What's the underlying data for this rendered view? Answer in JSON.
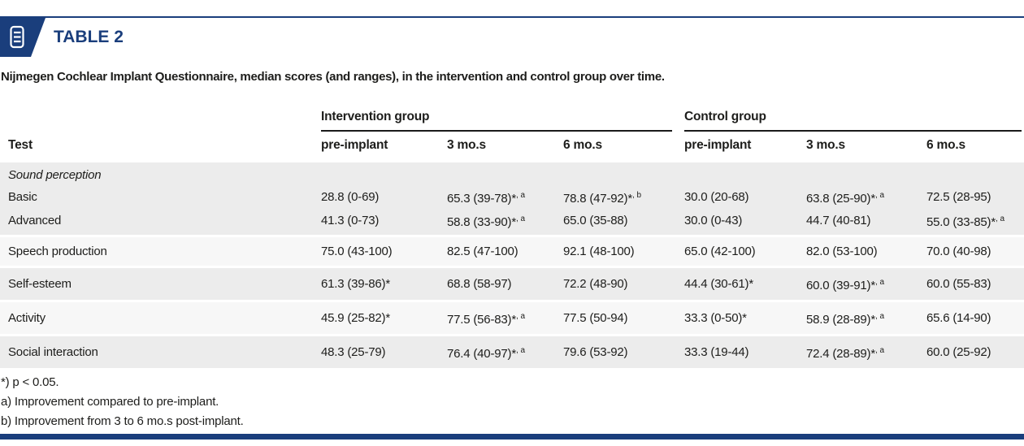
{
  "colors": {
    "navy": "#1a3e7c",
    "band_dark": "#ececec",
    "band_light": "#f7f7f7",
    "text": "#1d1d1b"
  },
  "header": {
    "title": "TABLE 2",
    "icon": "table-list-icon"
  },
  "caption": "Nijmegen Cochlear Implant Questionnaire, median scores (and ranges), in the intervention and control group over time.",
  "table": {
    "test_col_header": "Test",
    "groups": [
      {
        "label": "Intervention group",
        "subcols": [
          "pre-implant",
          "3 mo.s",
          "6 mo.s"
        ]
      },
      {
        "label": "Control group",
        "subcols": [
          "pre-implant",
          "3 mo.s",
          "6 mo.s"
        ]
      }
    ],
    "bands": [
      {
        "shade": "dark",
        "group": true,
        "rows": [
          {
            "label": "Sound perception",
            "italic": true,
            "cells": []
          },
          {
            "label": "Basic",
            "cells": [
              {
                "t": "28.8 (0-69)",
                "s": ""
              },
              {
                "t": "65.3 (39-78)*",
                "s": ", a"
              },
              {
                "t": "78.8 (47-92)*",
                "s": ", b"
              },
              {
                "t": "30.0 (20-68)",
                "s": ""
              },
              {
                "t": "63.8 (25-90)*",
                "s": ", a"
              },
              {
                "t": "72.5 (28-95)",
                "s": ""
              }
            ]
          },
          {
            "label": "Advanced",
            "cells": [
              {
                "t": "41.3 (0-73)",
                "s": ""
              },
              {
                "t": "58.8 (33-90)*",
                "s": ", a"
              },
              {
                "t": "65.0 (35-88)",
                "s": ""
              },
              {
                "t": "30.0 (0-43)",
                "s": ""
              },
              {
                "t": "44.7 (40-81)",
                "s": ""
              },
              {
                "t": "55.0 (33-85)*",
                "s": ", a"
              }
            ]
          }
        ]
      },
      {
        "shade": "light",
        "group": false,
        "rows": [
          {
            "label": "Speech production",
            "cells": [
              {
                "t": "75.0 (43-100)",
                "s": ""
              },
              {
                "t": "82.5 (47-100)",
                "s": ""
              },
              {
                "t": "92.1 (48-100)",
                "s": ""
              },
              {
                "t": "65.0 (42-100)",
                "s": ""
              },
              {
                "t": "82.0 (53-100)",
                "s": ""
              },
              {
                "t": "70.0 (40-98)",
                "s": ""
              }
            ]
          }
        ]
      },
      {
        "shade": "dark",
        "group": false,
        "rows": [
          {
            "label": "Self-esteem",
            "cells": [
              {
                "t": "61.3 (39-86)*",
                "s": ""
              },
              {
                "t": "68.8 (58-97)",
                "s": ""
              },
              {
                "t": "72.2 (48-90)",
                "s": ""
              },
              {
                "t": "44.4 (30-61)*",
                "s": ""
              },
              {
                "t": "60.0 (39-91)*",
                "s": ", a"
              },
              {
                "t": "60.0 (55-83)",
                "s": ""
              }
            ]
          }
        ]
      },
      {
        "shade": "light",
        "group": false,
        "rows": [
          {
            "label": "Activity",
            "cells": [
              {
                "t": "45.9 (25-82)*",
                "s": ""
              },
              {
                "t": "77.5 (56-83)*",
                "s": ", a"
              },
              {
                "t": "77.5 (50-94)",
                "s": ""
              },
              {
                "t": "33.3 (0-50)*",
                "s": ""
              },
              {
                "t": "58.9 (28-89)*",
                "s": ", a"
              },
              {
                "t": "65.6 (14-90)",
                "s": ""
              }
            ]
          }
        ]
      },
      {
        "shade": "dark",
        "group": false,
        "rows": [
          {
            "label": "Social interaction",
            "cells": [
              {
                "t": "48.3 (25-79)",
                "s": ""
              },
              {
                "t": "76.4 (40-97)*",
                "s": ", a"
              },
              {
                "t": "79.6 (53-92)",
                "s": ""
              },
              {
                "t": "33.3 (19-44)",
                "s": ""
              },
              {
                "t": "72.4 (28-89)*",
                "s": ", a"
              },
              {
                "t": "60.0 (25-92)",
                "s": ""
              }
            ]
          }
        ]
      }
    ]
  },
  "footnotes": [
    "*) p < 0.05.",
    "a) Improvement compared to pre-implant.",
    "b) Improvement from 3 to 6 mo.s post-implant."
  ]
}
